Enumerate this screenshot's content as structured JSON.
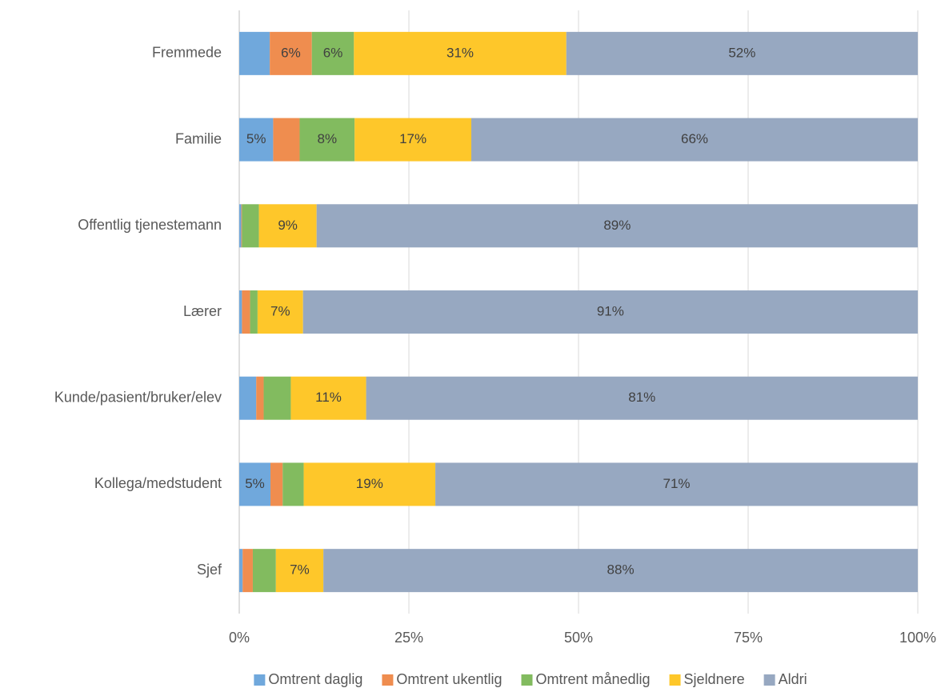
{
  "chart_data": {
    "type": "stacked_barh",
    "categories": [
      "Fremmede",
      "Familie",
      "Offentlig tjenestemann",
      "Lærer",
      "Kunde/pasient/bruker/elev",
      "Kollega/medstudent",
      "Sjef"
    ],
    "series": [
      {
        "name": "Omtrent daglig",
        "color": "#70a8dc",
        "values": [
          4.5,
          5.0,
          0.3,
          0.4,
          2.5,
          4.6,
          0.5
        ],
        "value_labels": [
          null,
          "5%",
          null,
          null,
          null,
          "5%",
          null
        ]
      },
      {
        "name": "Omtrent ukentlig",
        "color": "#ef8d4f",
        "values": [
          6.2,
          3.9,
          0.1,
          1.2,
          1.1,
          1.8,
          1.5
        ],
        "value_labels": [
          "6%",
          null,
          null,
          null,
          null,
          null,
          null
        ]
      },
      {
        "name": "Omtrent månedlig",
        "color": "#82bb5f",
        "values": [
          6.2,
          8.1,
          2.5,
          1.1,
          4.0,
          3.1,
          3.4
        ],
        "value_labels": [
          "6%",
          "8%",
          null,
          null,
          null,
          null,
          null
        ]
      },
      {
        "name": "Sjeldnere",
        "color": "#fec72a",
        "values": [
          31.3,
          17.2,
          8.5,
          6.7,
          11.1,
          19.4,
          7.0
        ],
        "value_labels": [
          "31%",
          "17%",
          "9%",
          "7%",
          "11%",
          "19%",
          "7%"
        ]
      },
      {
        "name": "Aldri",
        "color": "#97a8c1",
        "values": [
          51.8,
          65.8,
          88.6,
          90.6,
          81.3,
          71.1,
          87.6
        ],
        "value_labels": [
          "52%",
          "66%",
          "89%",
          "91%",
          "81%",
          "71%",
          "88%"
        ]
      }
    ],
    "xlim": [
      0,
      100
    ],
    "xticks": [
      {
        "value": 0,
        "label": "0%"
      },
      {
        "value": 25,
        "label": "25%"
      },
      {
        "value": 50,
        "label": "50%"
      },
      {
        "value": 75,
        "label": "75%"
      },
      {
        "value": 100,
        "label": "100%"
      }
    ],
    "grid": true,
    "legend": "bottom"
  }
}
